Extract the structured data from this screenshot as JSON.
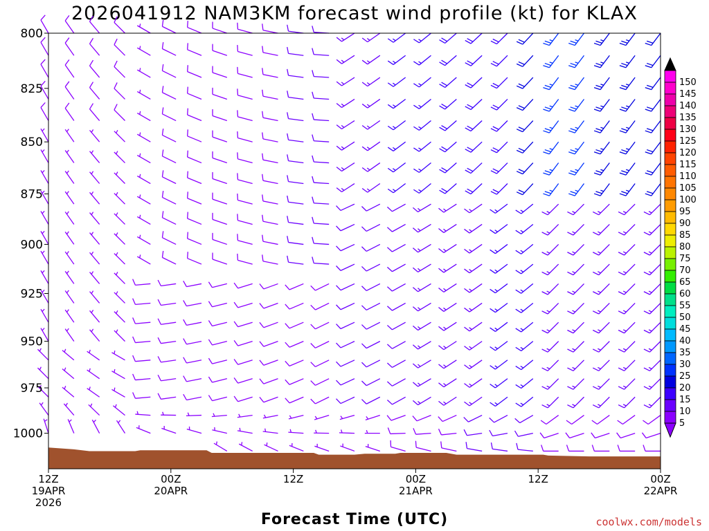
{
  "chart_data": {
    "type": "wind-barb-time-height",
    "title": "2026041912 NAM3KM forecast wind profile (kt) for KLAX",
    "xlabel": "Forecast Time (UTC)",
    "ylabel": "",
    "y_axis": {
      "units": "hPa",
      "range": [
        800,
        1020
      ],
      "inverted": true,
      "ticks": [
        "800",
        "825",
        "850",
        "875",
        "900",
        "925",
        "950",
        "975",
        "1000"
      ]
    },
    "x_axis": {
      "units": "hours since 2026-04-19 12Z",
      "range": [
        0,
        60
      ],
      "ticks": [
        {
          "hour": 0,
          "lines": [
            "12Z",
            "19APR",
            "2026"
          ]
        },
        {
          "hour": 12,
          "lines": [
            "00Z",
            "20APR"
          ]
        },
        {
          "hour": 24,
          "lines": [
            "12Z"
          ]
        },
        {
          "hour": 36,
          "lines": [
            "00Z",
            "21APR"
          ]
        },
        {
          "hour": 48,
          "lines": [
            "12Z"
          ]
        },
        {
          "hour": 60,
          "lines": [
            "00Z",
            "22APR"
          ]
        }
      ]
    },
    "forecast_hours": [
      0,
      2.5,
      5,
      7.5,
      10,
      12.5,
      15,
      17.5,
      20,
      22.5,
      25,
      27.5,
      30,
      32.5,
      35,
      37.5,
      40,
      42.5,
      45,
      47.5,
      50,
      52.5,
      55,
      57.5,
      60
    ],
    "pressure_levels": [
      800,
      810,
      820,
      830,
      840,
      850,
      860,
      870,
      880,
      890,
      900,
      910,
      920,
      930,
      940,
      950,
      960,
      970,
      980,
      990,
      1000,
      1010
    ],
    "terrain_surface_pressure": [
      {
        "hour": 0,
        "hPa": 1008
      },
      {
        "hour": 2.5,
        "hPa": 1009
      },
      {
        "hour": 4,
        "hPa": 1010
      },
      {
        "hour": 8.5,
        "hPa": 1010
      },
      {
        "hour": 9,
        "hPa": 1009.5
      },
      {
        "hour": 15.5,
        "hPa": 1009.5
      },
      {
        "hour": 16,
        "hPa": 1011
      },
      {
        "hour": 26,
        "hPa": 1011
      },
      {
        "hour": 26.5,
        "hPa": 1012
      },
      {
        "hour": 30,
        "hPa": 1012
      },
      {
        "hour": 31,
        "hPa": 1011.5
      },
      {
        "hour": 34,
        "hPa": 1011.5
      },
      {
        "hour": 34.5,
        "hPa": 1011
      },
      {
        "hour": 39,
        "hPa": 1011
      },
      {
        "hour": 40,
        "hPa": 1012
      },
      {
        "hour": 48.5,
        "hPa": 1012
      },
      {
        "hour": 49,
        "hPa": 1012.5
      },
      {
        "hour": 53,
        "hPa": 1013
      },
      {
        "hour": 60,
        "hPa": 1013
      }
    ],
    "wind_field_summary": [
      {
        "period_hours": [
          0,
          10
        ],
        "layer_hPa": [
          800,
          1010
        ],
        "direction": "northwesterly",
        "speed_kt": [
          5,
          12
        ]
      },
      {
        "period_hours": [
          10,
          30
        ],
        "layer_hPa": [
          940,
          1010
        ],
        "direction": "westerly to southwesterly",
        "speed_kt": [
          5,
          12
        ]
      },
      {
        "period_hours": [
          30,
          50
        ],
        "layer_hPa": [
          800,
          940
        ],
        "direction": "southwesterly",
        "speed_kt": [
          10,
          20
        ]
      },
      {
        "period_hours": [
          50,
          60
        ],
        "layer_hPa": [
          800,
          880
        ],
        "direction": "south-southwesterly",
        "speed_kt": [
          20,
          35
        ]
      }
    ],
    "colorbar": {
      "labels": [
        "5",
        "10",
        "15",
        "20",
        "25",
        "30",
        "35",
        "40",
        "45",
        "50",
        "55",
        "60",
        "65",
        "70",
        "75",
        "80",
        "85",
        "90",
        "95",
        "100",
        "105",
        "110",
        "115",
        "120",
        "125",
        "130",
        "135",
        "140",
        "145",
        "150"
      ],
      "colors": [
        "#8b00ff",
        "#6a00ff",
        "#3c00ff",
        "#0000e0",
        "#0032ff",
        "#0066ff",
        "#0099ff",
        "#00bbff",
        "#00dddd",
        "#00eec0",
        "#00e08a",
        "#00dd44",
        "#33ee00",
        "#77f000",
        "#bbf200",
        "#eeee00",
        "#ffd800",
        "#ffbb00",
        "#ff9c00",
        "#ff8800",
        "#ff7400",
        "#ff5c00",
        "#ff4400",
        "#ff2200",
        "#ff0018",
        "#ee0044",
        "#ee0077",
        "#ee00aa",
        "#ff00cc",
        "#ff00ee"
      ],
      "under_color": "#8b00ff",
      "over_color": "#000000"
    }
  },
  "footer": {
    "credit": "coolwx.com/models"
  },
  "colors": {
    "terrain": "#a0522d",
    "barb_default": "#7700dd"
  }
}
